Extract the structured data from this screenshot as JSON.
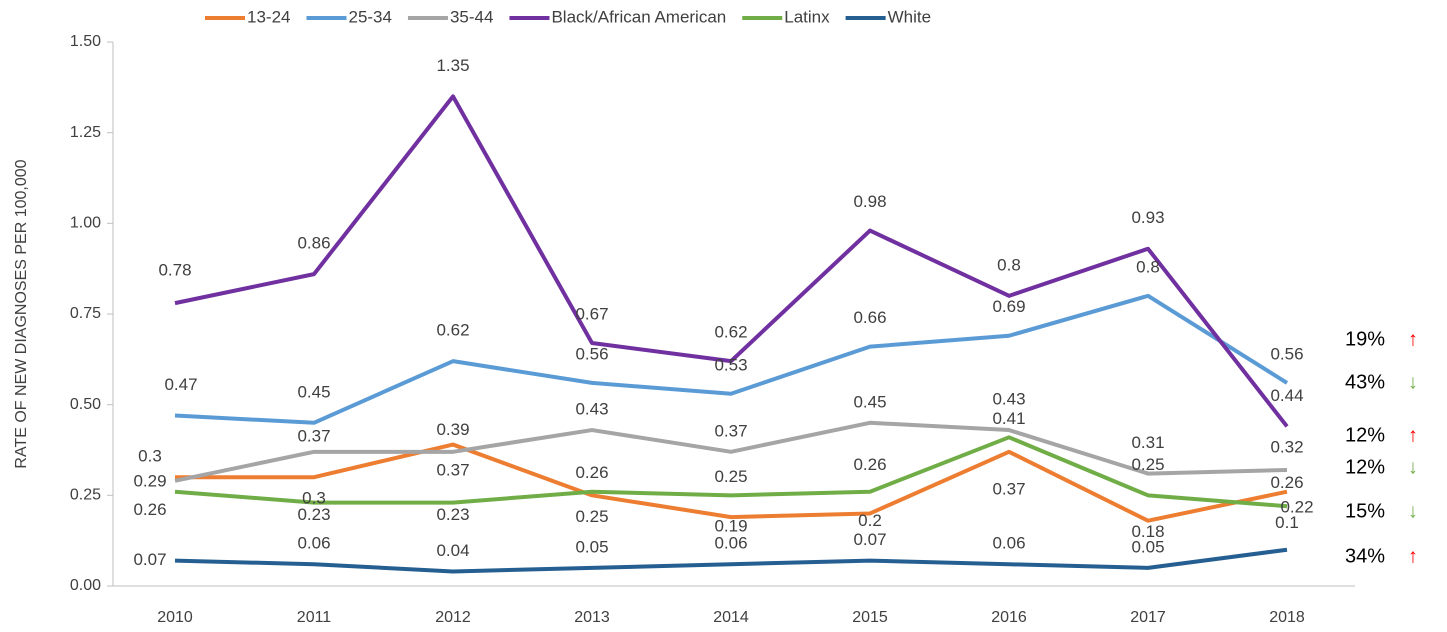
{
  "chart_data": {
    "type": "line",
    "y_label": "RATE OF NEW DIAGNOSES PER 100,000",
    "categories": [
      "2010",
      "2011",
      "2012",
      "2013",
      "2014",
      "2015",
      "2016",
      "2017",
      "2018"
    ],
    "series": [
      {
        "name": "13-24",
        "color": "#ED7D31",
        "values": [
          0.3,
          0.3,
          0.39,
          0.25,
          0.19,
          0.2,
          0.37,
          0.18,
          0.26
        ]
      },
      {
        "name": "25-34",
        "color": "#5B9BD5",
        "values": [
          0.47,
          0.45,
          0.62,
          0.56,
          0.53,
          0.66,
          0.69,
          0.8,
          0.56
        ]
      },
      {
        "name": "35-44",
        "color": "#A5A5A5",
        "values": [
          0.29,
          0.37,
          0.37,
          0.43,
          0.37,
          0.45,
          0.43,
          0.31,
          0.32
        ]
      },
      {
        "name": "Black/African American",
        "color": "#7030A0",
        "values": [
          0.78,
          0.86,
          1.35,
          0.67,
          0.62,
          0.98,
          0.8,
          0.93,
          0.44
        ]
      },
      {
        "name": "Latinx",
        "color": "#70AD47",
        "values": [
          0.26,
          0.23,
          0.23,
          0.26,
          0.25,
          0.26,
          0.41,
          0.25,
          0.22
        ]
      },
      {
        "name": "White",
        "color": "#255E91",
        "values": [
          0.07,
          0.06,
          0.04,
          0.05,
          0.06,
          0.07,
          0.06,
          0.05,
          0.1
        ]
      }
    ],
    "ylim": [
      0,
      1.5
    ],
    "yticks": [
      {
        "value": 0,
        "label": "0.00"
      },
      {
        "value": 0.25,
        "label": "0.25"
      },
      {
        "value": 0.5,
        "label": "0.50"
      },
      {
        "value": 0.75,
        "label": "0.75"
      },
      {
        "value": 1,
        "label": "1.00"
      },
      {
        "value": 1.25,
        "label": "1.25"
      },
      {
        "value": 1.5,
        "label": "1.50"
      }
    ],
    "legend": "top",
    "annotations": [
      {
        "text": "19%",
        "arrow": "↑",
        "color": "#FF0000"
      },
      {
        "text": "43%",
        "arrow": "↓",
        "color": "#70AD47"
      },
      {
        "text": "12%",
        "arrow": "↑",
        "color": "#FF0000"
      },
      {
        "text": "12%",
        "arrow": "↓",
        "color": "#70AD47"
      },
      {
        "text": "15%",
        "arrow": "↓",
        "color": "#70AD47"
      },
      {
        "text": "34%",
        "arrow": "↑",
        "color": "#FF0000"
      }
    ]
  }
}
